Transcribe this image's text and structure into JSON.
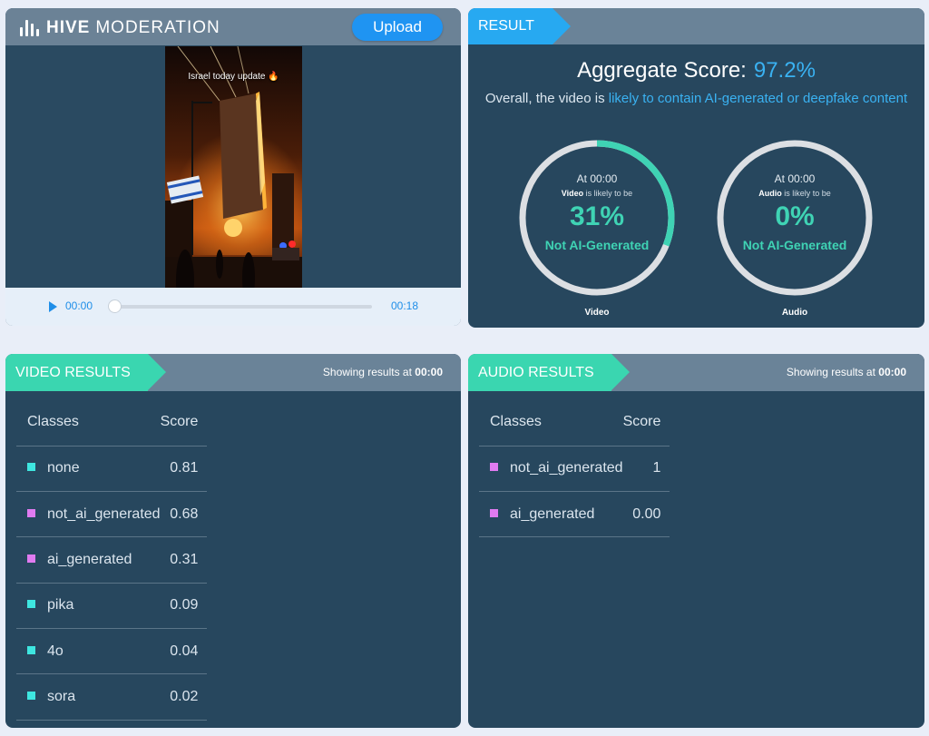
{
  "brand": {
    "bold": "HIVE",
    "light": "MODERATION"
  },
  "upload_label": "Upload",
  "video": {
    "caption": "Israel today update 🔥",
    "current_time": "00:00",
    "duration": "00:18",
    "progress": 0
  },
  "result": {
    "tag": "RESULT",
    "aggregate_label": "Aggregate Score:",
    "aggregate_value": "97.2%",
    "overall_prefix": "Overall, the video is",
    "overall_highlight": "likely to contain AI-generated or deepfake content",
    "gauges": [
      {
        "at": "At 00:00",
        "subject": "Video",
        "likely_suffix": "is likely to be",
        "percent": "31%",
        "fraction": 0.31,
        "verdict": "Not AI-Generated",
        "label": "Video"
      },
      {
        "at": "At 00:00",
        "subject": "Audio",
        "likely_suffix": "is likely to be",
        "percent": "0%",
        "fraction": 0,
        "verdict": "Not AI-Generated",
        "label": "Audio"
      }
    ]
  },
  "video_results": {
    "tag": "VIDEO RESULTS",
    "showing_prefix": "Showing results at",
    "showing_time": "00:00",
    "col_classes": "Classes",
    "col_score": "Score",
    "rows": [
      {
        "name": "none",
        "score": "0.81",
        "color": "#3ee6e0"
      },
      {
        "name": "not_ai_generated",
        "score": "0.68",
        "color": "#e07bf0"
      },
      {
        "name": "ai_generated",
        "score": "0.31",
        "color": "#e07bf0"
      },
      {
        "name": "pika",
        "score": "0.09",
        "color": "#3ee6e0"
      },
      {
        "name": "4o",
        "score": "0.04",
        "color": "#3ee6e0"
      },
      {
        "name": "sora",
        "score": "0.02",
        "color": "#3ee6e0"
      }
    ]
  },
  "audio_results": {
    "tag": "AUDIO RESULTS",
    "showing_prefix": "Showing results at",
    "showing_time": "00:00",
    "col_classes": "Classes",
    "col_score": "Score",
    "rows": [
      {
        "name": "not_ai_generated",
        "score": "1",
        "color": "#e07bf0"
      },
      {
        "name": "ai_generated",
        "score": "0.00",
        "color": "#e07bf0"
      }
    ]
  },
  "colors": {
    "accent_blue": "#27a9f1",
    "accent_green": "#3ad6b0",
    "gauge_fill": "#3fd3b4",
    "gauge_track": "#dcdfe3"
  }
}
